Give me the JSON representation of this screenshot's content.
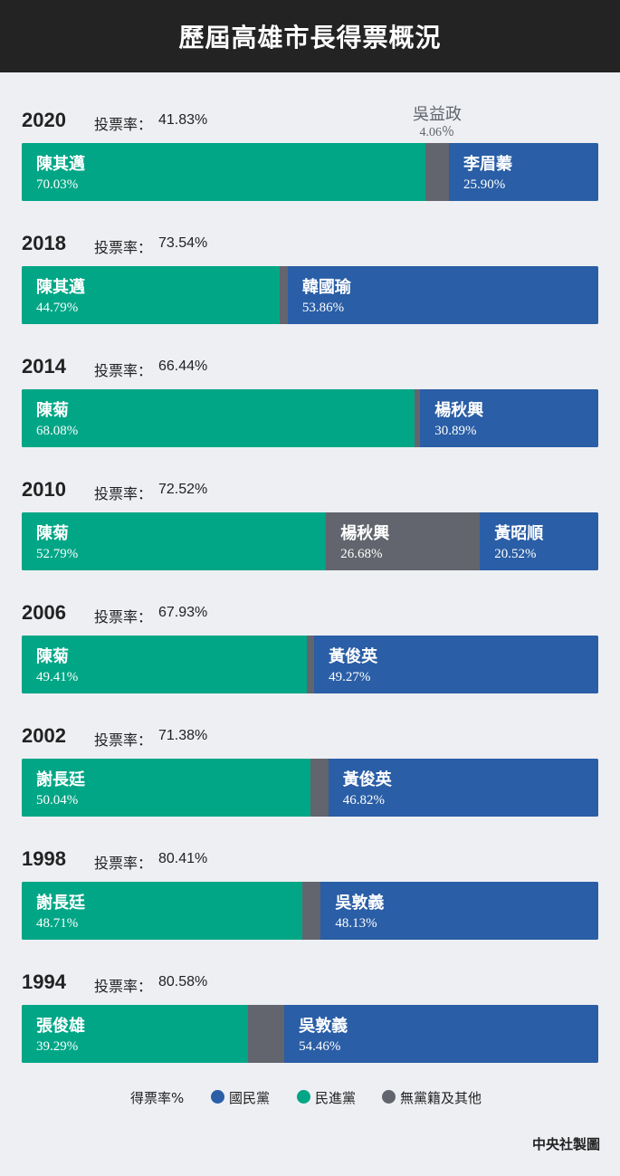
{
  "title": "歷屆高雄市長得票概況",
  "turnout_label": "投票率：",
  "colors": {
    "kmt": "#2a5ea6",
    "dpp": "#00a686",
    "other": "#62656d"
  },
  "chart_data": [
    {
      "type": "bar",
      "year": "2020",
      "turnout": "41.83%",
      "segments": [
        {
          "party": "dpp",
          "name": "陳其邁",
          "value": 70.03,
          "label": "70.03%"
        },
        {
          "party": "other",
          "name": "吳益政",
          "value": 4.06,
          "label": "4.06％",
          "callout": true
        },
        {
          "party": "kmt",
          "name": "李眉蓁",
          "value": 25.9,
          "label": "25.90%"
        }
      ]
    },
    {
      "type": "bar",
      "year": "2018",
      "turnout": "73.54%",
      "segments": [
        {
          "party": "dpp",
          "name": "陳其邁",
          "value": 44.79,
          "label": "44.79%"
        },
        {
          "party": "other",
          "name": "",
          "value": 1.35,
          "label": ""
        },
        {
          "party": "kmt",
          "name": "韓國瑜",
          "value": 53.86,
          "label": "53.86%"
        }
      ]
    },
    {
      "type": "bar",
      "year": "2014",
      "turnout": "66.44%",
      "segments": [
        {
          "party": "dpp",
          "name": "陳菊",
          "value": 68.08,
          "label": "68.08%"
        },
        {
          "party": "other",
          "name": "",
          "value": 1.03,
          "label": ""
        },
        {
          "party": "kmt",
          "name": "楊秋興",
          "value": 30.89,
          "label": "30.89%"
        }
      ]
    },
    {
      "type": "bar",
      "year": "2010",
      "turnout": "72.52%",
      "segments": [
        {
          "party": "dpp",
          "name": "陳菊",
          "value": 52.79,
          "label": "52.79%"
        },
        {
          "party": "other",
          "name": "楊秋興",
          "value": 26.68,
          "label": "26.68%"
        },
        {
          "party": "kmt",
          "name": "黃昭順",
          "value": 20.52,
          "label": "20.52%"
        }
      ]
    },
    {
      "type": "bar",
      "year": "2006",
      "turnout": "67.93%",
      "segments": [
        {
          "party": "dpp",
          "name": "陳菊",
          "value": 49.41,
          "label": "49.41%"
        },
        {
          "party": "other",
          "name": "",
          "value": 1.32,
          "label": ""
        },
        {
          "party": "kmt",
          "name": "黃俊英",
          "value": 49.27,
          "label": "49.27%"
        }
      ]
    },
    {
      "type": "bar",
      "year": "2002",
      "turnout": "71.38%",
      "segments": [
        {
          "party": "dpp",
          "name": "謝長廷",
          "value": 50.04,
          "label": "50.04%"
        },
        {
          "party": "other",
          "name": "",
          "value": 3.14,
          "label": ""
        },
        {
          "party": "kmt",
          "name": "黃俊英",
          "value": 46.82,
          "label": "46.82%"
        }
      ]
    },
    {
      "type": "bar",
      "year": "1998",
      "turnout": "80.41%",
      "segments": [
        {
          "party": "dpp",
          "name": "謝長廷",
          "value": 48.71,
          "label": "48.71%"
        },
        {
          "party": "other",
          "name": "",
          "value": 3.16,
          "label": ""
        },
        {
          "party": "kmt",
          "name": "吳敦義",
          "value": 48.13,
          "label": "48.13%"
        }
      ]
    },
    {
      "type": "bar",
      "year": "1994",
      "turnout": "80.58%",
      "segments": [
        {
          "party": "dpp",
          "name": "張俊雄",
          "value": 39.29,
          "label": "39.29%"
        },
        {
          "party": "other",
          "name": "",
          "value": 6.25,
          "label": ""
        },
        {
          "party": "kmt",
          "name": "吳敦義",
          "value": 54.46,
          "label": "54.46%"
        }
      ]
    }
  ],
  "legend": {
    "title": "得票率%",
    "items": [
      {
        "party": "kmt",
        "label": "國民黨"
      },
      {
        "party": "dpp",
        "label": "民進黨"
      },
      {
        "party": "other",
        "label": "無黨籍及其他"
      }
    ]
  },
  "credit": "中央社製圖"
}
